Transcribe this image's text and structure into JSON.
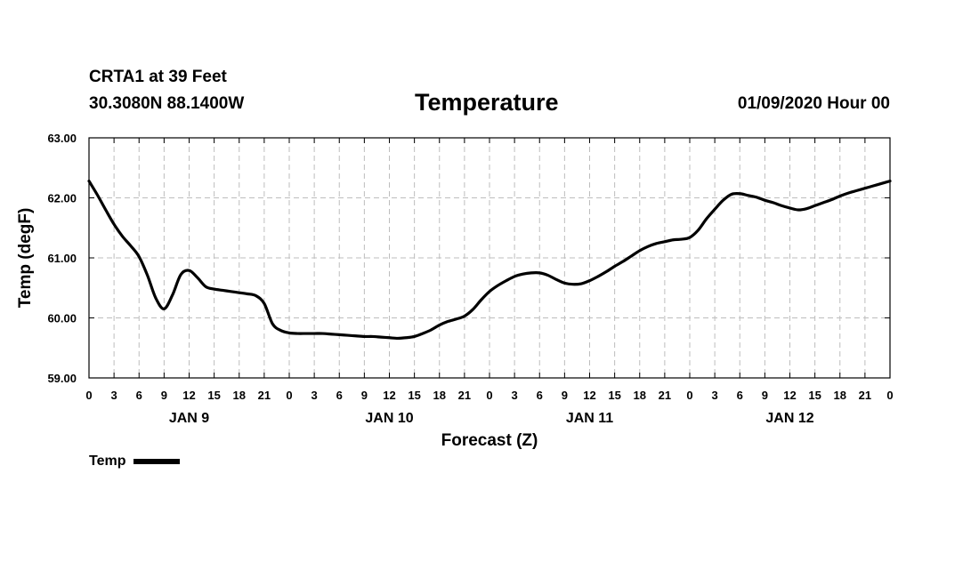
{
  "header": {
    "station": "CRTA1 at 39 Feet",
    "coords": "30.3080N 88.1400W",
    "date": "01/09/2020 Hour 00"
  },
  "chart_data": {
    "type": "line",
    "title": "Temperature",
    "xlabel": "Forecast (Z)",
    "ylabel": "Temp (degF)",
    "ylim": [
      59.0,
      63.0
    ],
    "y_ticks": [
      "59.00",
      "60.00",
      "61.00",
      "62.00",
      "63.00"
    ],
    "xlim": [
      0,
      96
    ],
    "x_tick_labels": [
      "0",
      "3",
      "6",
      "9",
      "12",
      "15",
      "18",
      "21",
      "0",
      "3",
      "6",
      "9",
      "12",
      "15",
      "18",
      "21",
      "0",
      "3",
      "6",
      "9",
      "12",
      "15",
      "18",
      "21",
      "0",
      "3",
      "6",
      "9",
      "12",
      "15",
      "18",
      "21",
      "0"
    ],
    "day_labels": [
      {
        "label": "JAN 9",
        "x": 12
      },
      {
        "label": "JAN 10",
        "x": 36
      },
      {
        "label": "JAN 11",
        "x": 60
      },
      {
        "label": "JAN 12",
        "x": 84
      }
    ],
    "grid": true,
    "legend_position": "bottom-left",
    "series": [
      {
        "name": "Temp",
        "color": "#000000",
        "x": [
          0,
          1,
          2,
          3,
          4,
          5,
          6,
          7,
          8,
          9,
          10,
          11,
          12,
          13,
          14,
          15,
          16,
          17,
          18,
          19,
          20,
          21,
          22,
          23,
          24,
          25,
          26,
          27,
          28,
          29,
          30,
          31,
          32,
          33,
          34,
          35,
          36,
          37,
          38,
          39,
          40,
          41,
          42,
          43,
          44,
          45,
          46,
          47,
          48,
          49,
          50,
          51,
          52,
          53,
          54,
          55,
          56,
          57,
          58,
          59,
          60,
          61,
          62,
          63,
          64,
          65,
          66,
          67,
          68,
          69,
          70,
          71,
          72,
          73,
          74,
          75,
          76,
          77,
          78,
          79,
          80,
          81,
          82,
          83,
          84,
          85,
          86,
          87,
          88,
          89,
          90,
          91,
          92,
          93,
          94,
          95,
          96
        ],
        "values": [
          62.28,
          62.05,
          61.8,
          61.56,
          61.36,
          61.2,
          61.02,
          60.71,
          60.33,
          60.15,
          60.38,
          60.72,
          60.79,
          60.67,
          60.52,
          60.48,
          60.46,
          60.44,
          60.42,
          60.4,
          60.37,
          60.24,
          59.9,
          59.79,
          59.75,
          59.74,
          59.74,
          59.74,
          59.74,
          59.73,
          59.72,
          59.71,
          59.7,
          59.69,
          59.69,
          59.68,
          59.67,
          59.66,
          59.67,
          59.69,
          59.74,
          59.8,
          59.88,
          59.94,
          59.98,
          60.03,
          60.14,
          60.3,
          60.44,
          60.54,
          60.62,
          60.69,
          60.73,
          60.75,
          60.75,
          60.71,
          60.64,
          60.58,
          60.56,
          60.57,
          60.62,
          60.69,
          60.77,
          60.86,
          60.94,
          61.03,
          61.12,
          61.19,
          61.24,
          61.27,
          61.3,
          61.31,
          61.34,
          61.46,
          61.65,
          61.81,
          61.96,
          62.06,
          62.07,
          62.04,
          62.01,
          61.96,
          61.92,
          61.87,
          61.83,
          61.8,
          61.82,
          61.87,
          61.92,
          61.97,
          62.03,
          62.08,
          62.12,
          62.16,
          62.2,
          62.24,
          62.28
        ]
      }
    ]
  }
}
